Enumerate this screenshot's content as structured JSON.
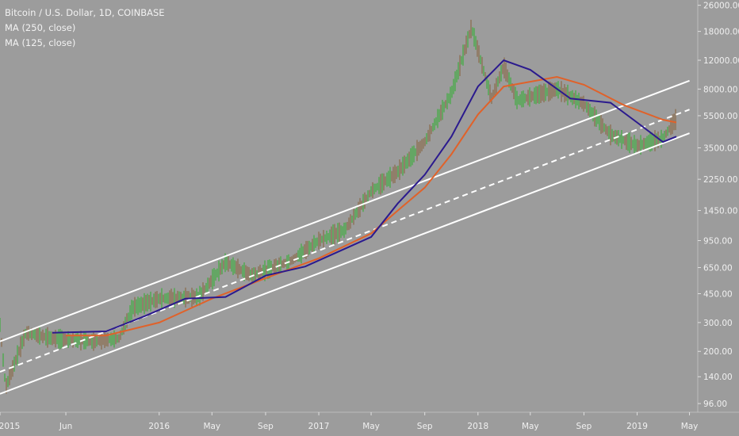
{
  "legend": {
    "title": "Bitcoin / U.S. Dollar, 1D, COINBASE",
    "ma1": "MA (250, close)",
    "ma2": "MA (125, close)"
  },
  "chart_data": {
    "type": "line",
    "y_scale": "log",
    "ylim": [
      85,
      28000
    ],
    "grid": false,
    "background": "#9c9c9c",
    "y_ticks": [
      "26000.00",
      "18000.00",
      "12000.00",
      "8000.00",
      "5500.00",
      "3500.00",
      "2250.00",
      "1450.00",
      "950.00",
      "650.00",
      "450.00",
      "300.00",
      "200.00",
      "140.00",
      "96.00"
    ],
    "x_ticks": [
      "2015",
      "Jun",
      "2016",
      "May",
      "Sep",
      "2017",
      "May",
      "Sep",
      "2018",
      "May",
      "Sep",
      "2019",
      "May"
    ],
    "colors": {
      "ma250": "#e0622a",
      "ma125": "#2b1a8e",
      "up": "#3fae3f",
      "down": "#8a6a4a",
      "channel": "#ffffff"
    },
    "series": [
      {
        "name": "MA (250, close)",
        "values": [
          [
            "2015-06",
            250
          ],
          [
            "2015-09",
            250
          ],
          [
            "2016-01",
            300
          ],
          [
            "2016-05",
            420
          ],
          [
            "2016-09",
            560
          ],
          [
            "2017-01",
            740
          ],
          [
            "2017-05",
            1050
          ],
          [
            "2017-07",
            1450
          ],
          [
            "2017-09",
            2000
          ],
          [
            "2017-11",
            3200
          ],
          [
            "2018-01",
            5600
          ],
          [
            "2018-03",
            8300
          ],
          [
            "2018-07",
            9500
          ],
          [
            "2018-09",
            8500
          ],
          [
            "2018-12",
            6400
          ],
          [
            "2019-03",
            5200
          ],
          [
            "2019-04",
            5000
          ]
        ]
      },
      {
        "name": "MA (125, close)",
        "values": [
          [
            "2015-05",
            260
          ],
          [
            "2015-09",
            265
          ],
          [
            "2015-12",
            330
          ],
          [
            "2016-03",
            420
          ],
          [
            "2016-06",
            430
          ],
          [
            "2016-09",
            580
          ],
          [
            "2016-12",
            660
          ],
          [
            "2017-05",
            1000
          ],
          [
            "2017-07",
            1600
          ],
          [
            "2017-09",
            2400
          ],
          [
            "2017-11",
            4100
          ],
          [
            "2018-01",
            8300
          ],
          [
            "2018-03",
            12000
          ],
          [
            "2018-05",
            10500
          ],
          [
            "2018-08",
            7000
          ],
          [
            "2018-11",
            6600
          ],
          [
            "2019-01",
            5000
          ],
          [
            "2019-03",
            3800
          ],
          [
            "2019-04",
            4100
          ]
        ]
      },
      {
        "name": "price",
        "values": [
          [
            "2015-01",
            290
          ],
          [
            "2015-01-14",
            120
          ],
          [
            "2015-03",
            260
          ],
          [
            "2015-05",
            240
          ],
          [
            "2015-08",
            230
          ],
          [
            "2015-10",
            240
          ],
          [
            "2015-11",
            370
          ],
          [
            "2016-01",
            420
          ],
          [
            "2016-04",
            430
          ],
          [
            "2016-06",
            700
          ],
          [
            "2016-08",
            580
          ],
          [
            "2016-11",
            720
          ],
          [
            "2017-01",
            950
          ],
          [
            "2017-03",
            1100
          ],
          [
            "2017-05",
            1900
          ],
          [
            "2017-07",
            2500
          ],
          [
            "2017-09",
            3800
          ],
          [
            "2017-11",
            7500
          ],
          [
            "2017-12-17",
            19000
          ],
          [
            "2018-02",
            7000
          ],
          [
            "2018-03",
            11000
          ],
          [
            "2018-04",
            6800
          ],
          [
            "2018-07",
            8000
          ],
          [
            "2018-09",
            6500
          ],
          [
            "2018-11",
            4200
          ],
          [
            "2019-01",
            3600
          ],
          [
            "2019-03",
            4000
          ],
          [
            "2019-04",
            5300
          ]
        ]
      }
    ],
    "channel": {
      "upper": [
        [
          "2015-01",
          230
        ],
        [
          "2019-05",
          9000
        ]
      ],
      "middle": [
        [
          "2015-01",
          150
        ],
        [
          "2019-05",
          6000
        ]
      ],
      "lower": [
        [
          "2015-01",
          110
        ],
        [
          "2019-05",
          4300
        ]
      ]
    }
  }
}
